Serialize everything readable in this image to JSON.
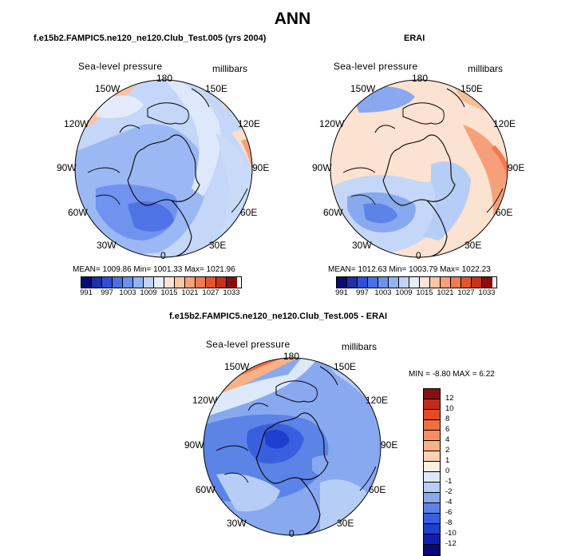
{
  "title": "ANN",
  "panels": {
    "model": {
      "title": "f.e15b2.FAMPIC5.ne120_ne120.Club_Test.005 (yrs 2004)",
      "variable": "Sea-level pressure",
      "units": "millibars",
      "stats": "MEAN= 1009.86   Min= 1001.33   Max= 1021.96"
    },
    "obs": {
      "title": "ERAI",
      "variable": "Sea-level pressure",
      "units": "millibars",
      "stats": "MEAN= 1012.63   Min= 1003.79   Max= 1022.23"
    },
    "diff": {
      "title": "f.e15b2.FAMPIC5.ne120_ne120.Club_Test.005 - ERAI",
      "variable": "Sea-level pressure",
      "units": "millibars",
      "stats": "MIN =   -8.80  MAX =    6.22"
    }
  },
  "lon_labels": {
    "l180": "180",
    "l150w": "150W",
    "l150e": "150E",
    "l120w": "120W",
    "l120e": "120E",
    "l90w": "90W",
    "l90e": "90E",
    "l60w": "60W",
    "l60e": "60E",
    "l30w": "30W",
    "l30e": "30E",
    "l0": "0"
  },
  "colorbar_abs": {
    "colors": [
      "#0a0a78",
      "#1f2fa8",
      "#2f4fd8",
      "#4a70e6",
      "#6b91ee",
      "#93b2f4",
      "#c0d4f8",
      "#e6eefb",
      "#fde4d4",
      "#fbc6a6",
      "#f7a079",
      "#f07a52",
      "#e2552f",
      "#c7321c",
      "#8b0e0e"
    ],
    "ticks": [
      "991",
      "997",
      "1003",
      "1009",
      "1015",
      "1021",
      "1027",
      "1033"
    ]
  },
  "colorbar_diff": {
    "colors": [
      "#8b0e0e",
      "#c42a1a",
      "#e24a28",
      "#f06e40",
      "#f69060",
      "#f9b186",
      "#fcd2b4",
      "#fdeede",
      "#dde9fb",
      "#b6cdf5",
      "#88a9ef",
      "#5c83e6",
      "#3a5fde",
      "#1f3fd0",
      "#0f1fb0",
      "#080878"
    ],
    "ticks": [
      "12",
      "10",
      "8",
      "6",
      "4",
      "2",
      "1",
      "0",
      "-1",
      "-2",
      "-4",
      "-6",
      "-8",
      "-10",
      "-12"
    ]
  }
}
